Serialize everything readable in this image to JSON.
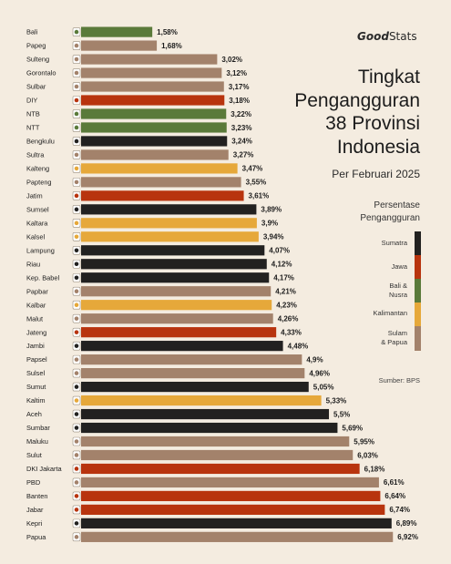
{
  "brand": {
    "bold": "Good",
    "rest": "Stats"
  },
  "chart_data": {
    "type": "bar",
    "orientation": "horizontal",
    "title_lines": [
      "Tingkat",
      "Pengangguran",
      "38 Provinsi",
      "Indonesia"
    ],
    "subtitle": "Per Februari 2025",
    "legend_title": [
      "Persentase",
      "Pengangguran"
    ],
    "legend": [
      {
        "label": [
          "Sumatra"
        ],
        "color": "#222120"
      },
      {
        "label": [
          "Jawa"
        ],
        "color": "#b8340e"
      },
      {
        "label": [
          "Bali &",
          "Nusra"
        ],
        "color": "#5a7a3a"
      },
      {
        "label": [
          "Kalimantan"
        ],
        "color": "#e6a83a"
      },
      {
        "label": [
          "Sulam",
          "& Papua"
        ],
        "color": "#a3826b"
      }
    ],
    "source": "Sumber: BPS",
    "categories": [
      "Bali",
      "Papeg",
      "Sulteng",
      "Gorontalo",
      "Sulbar",
      "DIY",
      "NTB",
      "NTT",
      "Bengkulu",
      "Sultra",
      "Kalteng",
      "Papteng",
      "Jatim",
      "Sumsel",
      "Kaltara",
      "Kalsel",
      "Lampung",
      "Riau",
      "Kep. Babel",
      "Papbar",
      "Kalbar",
      "Malut",
      "Jateng",
      "Jambi",
      "Papsel",
      "Sulsel",
      "Sumut",
      "Kaltim",
      "Aceh",
      "Sumbar",
      "Maluku",
      "Sulut",
      "DKI Jakarta",
      "PBD",
      "Banten",
      "Jabar",
      "Kepri",
      "Papua"
    ],
    "values": [
      1.58,
      1.68,
      3.02,
      3.12,
      3.17,
      3.18,
      3.22,
      3.23,
      3.24,
      3.27,
      3.47,
      3.55,
      3.61,
      3.89,
      3.9,
      3.94,
      4.07,
      4.12,
      4.17,
      4.21,
      4.23,
      4.26,
      4.33,
      4.48,
      4.9,
      4.96,
      5.05,
      5.33,
      5.5,
      5.69,
      5.95,
      6.03,
      6.18,
      6.61,
      6.64,
      6.74,
      6.89,
      6.92
    ],
    "value_labels": [
      "1,58%",
      "1,68%",
      "3,02%",
      "3,12%",
      "3,17%",
      "3,18%",
      "3,22%",
      "3,23%",
      "3,24%",
      "3,27%",
      "3,47%",
      "3,55%",
      "3,61%",
      "3,89%",
      "3,9%",
      "3,94%",
      "4,07%",
      "4,12%",
      "4,17%",
      "4,21%",
      "4,23%",
      "4,26%",
      "4,33%",
      "4,48%",
      "4,9%",
      "4,96%",
      "5,05%",
      "5,33%",
      "5,5%",
      "5,69%",
      "5,95%",
      "6,03%",
      "6,18%",
      "6,61%",
      "6,64%",
      "6,74%",
      "6,89%",
      "6,92%"
    ],
    "region": [
      "Bali & Nusra",
      "Sulam & Papua",
      "Sulam & Papua",
      "Sulam & Papua",
      "Sulam & Papua",
      "Jawa",
      "Bali & Nusra",
      "Bali & Nusra",
      "Sumatra",
      "Sulam & Papua",
      "Kalimantan",
      "Sulam & Papua",
      "Jawa",
      "Sumatra",
      "Kalimantan",
      "Kalimantan",
      "Sumatra",
      "Sumatra",
      "Sumatra",
      "Sulam & Papua",
      "Kalimantan",
      "Sulam & Papua",
      "Jawa",
      "Sumatra",
      "Sulam & Papua",
      "Sulam & Papua",
      "Sumatra",
      "Kalimantan",
      "Sumatra",
      "Sumatra",
      "Sulam & Papua",
      "Sulam & Papua",
      "Jawa",
      "Sulam & Papua",
      "Jawa",
      "Jawa",
      "Sumatra",
      "Sulam & Papua"
    ],
    "colors": {
      "Sumatra": "#222120",
      "Jawa": "#b8340e",
      "Bali & Nusra": "#5a7a3a",
      "Kalimantan": "#e6a83a",
      "Sulam & Papua": "#a3826b"
    },
    "xlim": [
      0,
      7.4
    ],
    "grid": false,
    "legend_placement": "right"
  }
}
